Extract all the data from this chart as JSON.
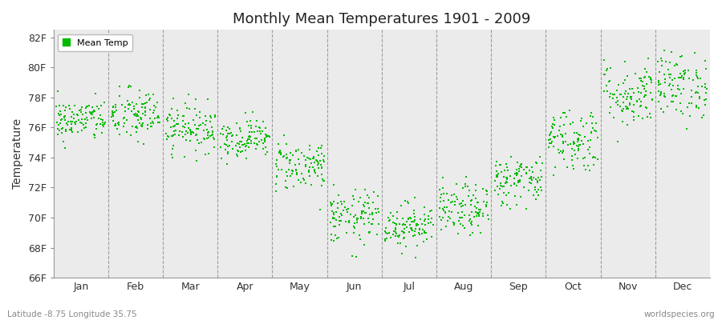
{
  "title": "Monthly Mean Temperatures 1901 - 2009",
  "ylabel": "Temperature",
  "xlabel_months": [
    "Jan",
    "Feb",
    "Mar",
    "Apr",
    "May",
    "Jun",
    "Jul",
    "Aug",
    "Sep",
    "Oct",
    "Nov",
    "Dec"
  ],
  "bottom_left_text": "Latitude -8.75 Longitude 35.75",
  "bottom_right_text": "worldspecies.org",
  "legend_label": "Mean Temp",
  "marker_color": "#00bb00",
  "background_color": "#ffffff",
  "plot_bg_color": "#ebebeb",
  "ylim": [
    66,
    82.5
  ],
  "yticks": [
    66,
    68,
    70,
    72,
    74,
    76,
    78,
    80,
    82
  ],
  "ytick_labels": [
    "66F",
    "68F",
    "70F",
    "72F",
    "74F",
    "76F",
    "78F",
    "80F",
    "82F"
  ],
  "num_years": 109,
  "monthly_mean_temps_F": [
    76.5,
    76.8,
    76.0,
    75.3,
    73.5,
    70.0,
    69.5,
    70.5,
    72.5,
    75.2,
    78.2,
    78.8
  ],
  "monthly_std_F": [
    0.7,
    0.9,
    0.8,
    0.65,
    0.85,
    0.9,
    0.75,
    0.85,
    0.85,
    1.1,
    1.1,
    1.1
  ],
  "seed": 42
}
